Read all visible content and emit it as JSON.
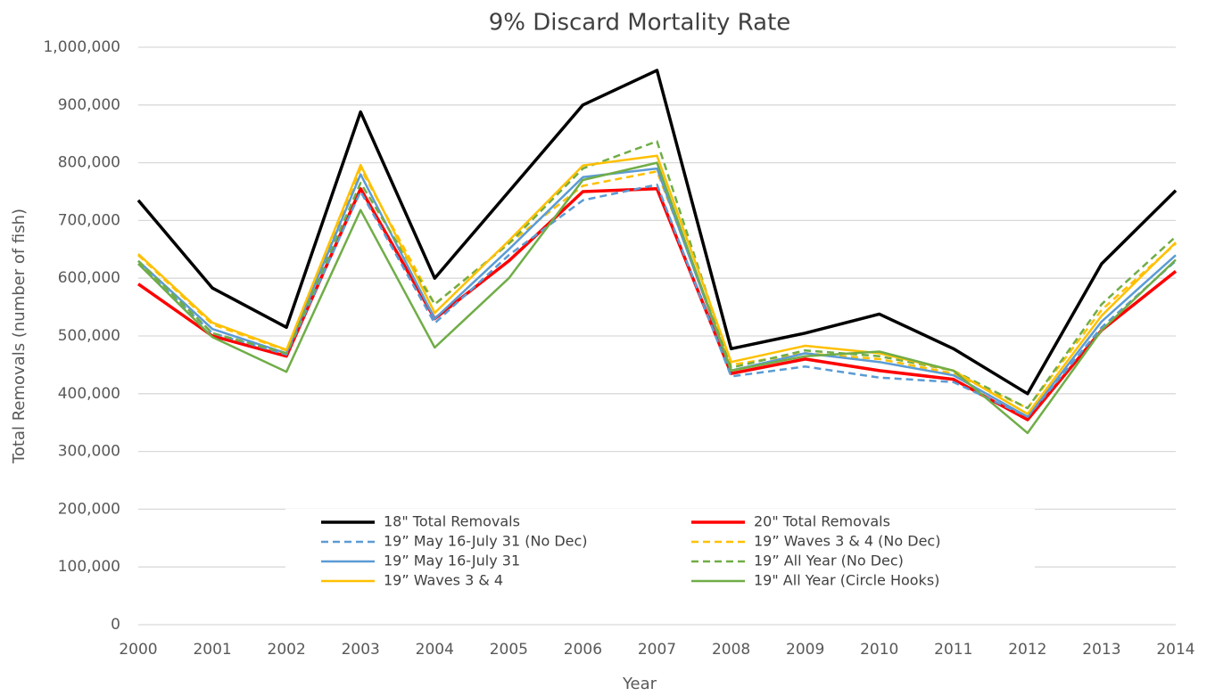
{
  "chart_data": {
    "type": "line",
    "title": "9% Discard Mortality Rate",
    "x_label": "Year",
    "y_label": "Total Removals (number of fish)",
    "x": [
      2000,
      2001,
      2002,
      2003,
      2004,
      2005,
      2006,
      2007,
      2008,
      2009,
      2010,
      2011,
      2012,
      2013,
      2014
    ],
    "xlim": [
      2000,
      2014
    ],
    "xticks": [
      2000,
      2001,
      2002,
      2003,
      2004,
      2005,
      2006,
      2007,
      2008,
      2009,
      2010,
      2011,
      2012,
      2013,
      2014
    ],
    "ylim": [
      0,
      1000000
    ],
    "yticks": [
      0,
      {
        "value": 100000,
        "label": "100,000"
      },
      {
        "value": 200000,
        "label": "200,000"
      },
      {
        "value": 300000,
        "label": "300,000"
      },
      {
        "value": 400000,
        "label": "400,000"
      },
      {
        "value": 500000,
        "label": "500,000"
      },
      {
        "value": 600000,
        "label": "600,000"
      },
      {
        "value": 700000,
        "label": "700,000"
      },
      {
        "value": 800000,
        "label": "800,000"
      },
      {
        "value": 900000,
        "label": "900,000"
      },
      {
        "value": 1000000,
        "label": "1,000,000"
      }
    ],
    "grid": true,
    "legend": "lower center",
    "series": [
      {
        "name": "18\" Total Removals",
        "color": "#000000",
        "dashed": false,
        "values": [
          735000,
          583000,
          515000,
          888000,
          600000,
          750000,
          900000,
          960000,
          478000,
          505000,
          538000,
          478000,
          400000,
          625000,
          752000
        ]
      },
      {
        "name": "20\" Total Removals",
        "color": "#ff0000",
        "dashed": false,
        "values": [
          590000,
          500000,
          465000,
          755000,
          530000,
          630000,
          750000,
          755000,
          435000,
          460000,
          440000,
          425000,
          355000,
          510000,
          612000
        ]
      },
      {
        "name": "19” May 16-July 31 (No Dec)",
        "color": "#5b9bd5",
        "dashed": true,
        "values": [
          625000,
          505000,
          468000,
          750000,
          522000,
          640000,
          735000,
          762000,
          430000,
          447000,
          428000,
          420000,
          360000,
          515000,
          630000
        ]
      },
      {
        "name": "19” Waves 3 & 4 (No Dec)",
        "color": "#ffc000",
        "dashed": true,
        "values": [
          640000,
          520000,
          475000,
          790000,
          555000,
          660000,
          760000,
          785000,
          450000,
          470000,
          460000,
          435000,
          375000,
          545000,
          660000
        ]
      },
      {
        "name": "19” May 16-July 31",
        "color": "#5b9bd5",
        "dashed": false,
        "values": [
          630000,
          512000,
          470000,
          780000,
          530000,
          650000,
          775000,
          790000,
          440000,
          470000,
          455000,
          432000,
          360000,
          525000,
          640000
        ]
      },
      {
        "name": "19” All Year (No Dec)",
        "color": "#70ad47",
        "dashed": true,
        "values": [
          630000,
          505000,
          470000,
          765000,
          555000,
          660000,
          790000,
          837000,
          445000,
          475000,
          465000,
          440000,
          375000,
          555000,
          672000
        ]
      },
      {
        "name": "19” Waves 3 & 4",
        "color": "#ffc000",
        "dashed": false,
        "values": [
          642000,
          523000,
          476000,
          796000,
          540000,
          665000,
          795000,
          812000,
          455000,
          483000,
          470000,
          440000,
          365000,
          535000,
          662000
        ]
      },
      {
        "name": "19\" All Year (Circle Hooks)",
        "color": "#70ad47",
        "dashed": false,
        "values": [
          625000,
          498000,
          438000,
          718000,
          480000,
          600000,
          770000,
          800000,
          440000,
          465000,
          473000,
          440000,
          332000,
          510000,
          632000
        ]
      }
    ]
  }
}
